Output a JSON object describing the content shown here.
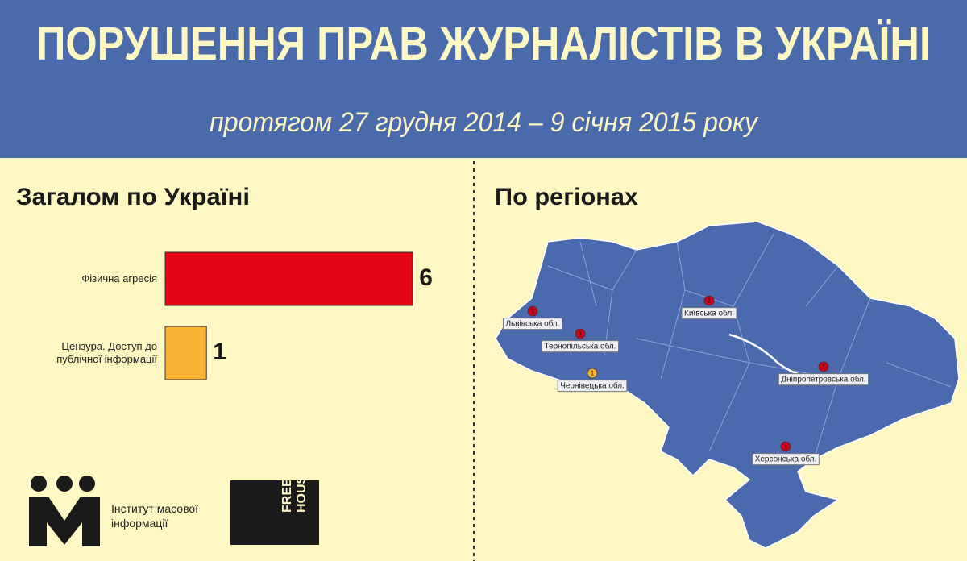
{
  "header": {
    "title": "ПОРУШЕННЯ ПРАВ ЖУРНАЛІСТІВ В УКРАЇНІ",
    "subtitle": "протягом 27 грудня 2014 – 9 січня 2015 року"
  },
  "chart_data": {
    "type": "bar",
    "orientation": "horizontal",
    "title": "Загалом по Україні",
    "categories": [
      "Фізична агресія",
      "Цензура. Доступ до публічної інформації"
    ],
    "values": [
      6,
      1
    ],
    "colors": [
      "#e30613",
      "#f7b234"
    ]
  },
  "map": {
    "title": "По регіонах",
    "regions": [
      {
        "label": "Львівська обл.",
        "count": 1,
        "color": "#d0021b"
      },
      {
        "label": "Тернопільська обл.",
        "count": 1,
        "color": "#d0021b"
      },
      {
        "label": "Київська обл.",
        "count": 2,
        "color": "#d0021b"
      },
      {
        "label": "Чернівецька обл.",
        "count": 1,
        "color": "#f7b234"
      },
      {
        "label": "Дніпропетровська обл.",
        "count": 1,
        "color": "#d0021b"
      },
      {
        "label": "Херсонська обл.",
        "count": 1,
        "color": "#d0021b"
      }
    ]
  },
  "logos": {
    "imi": "Інститут масової інформації",
    "freedom_house": "FREEDOM HOUSE"
  }
}
